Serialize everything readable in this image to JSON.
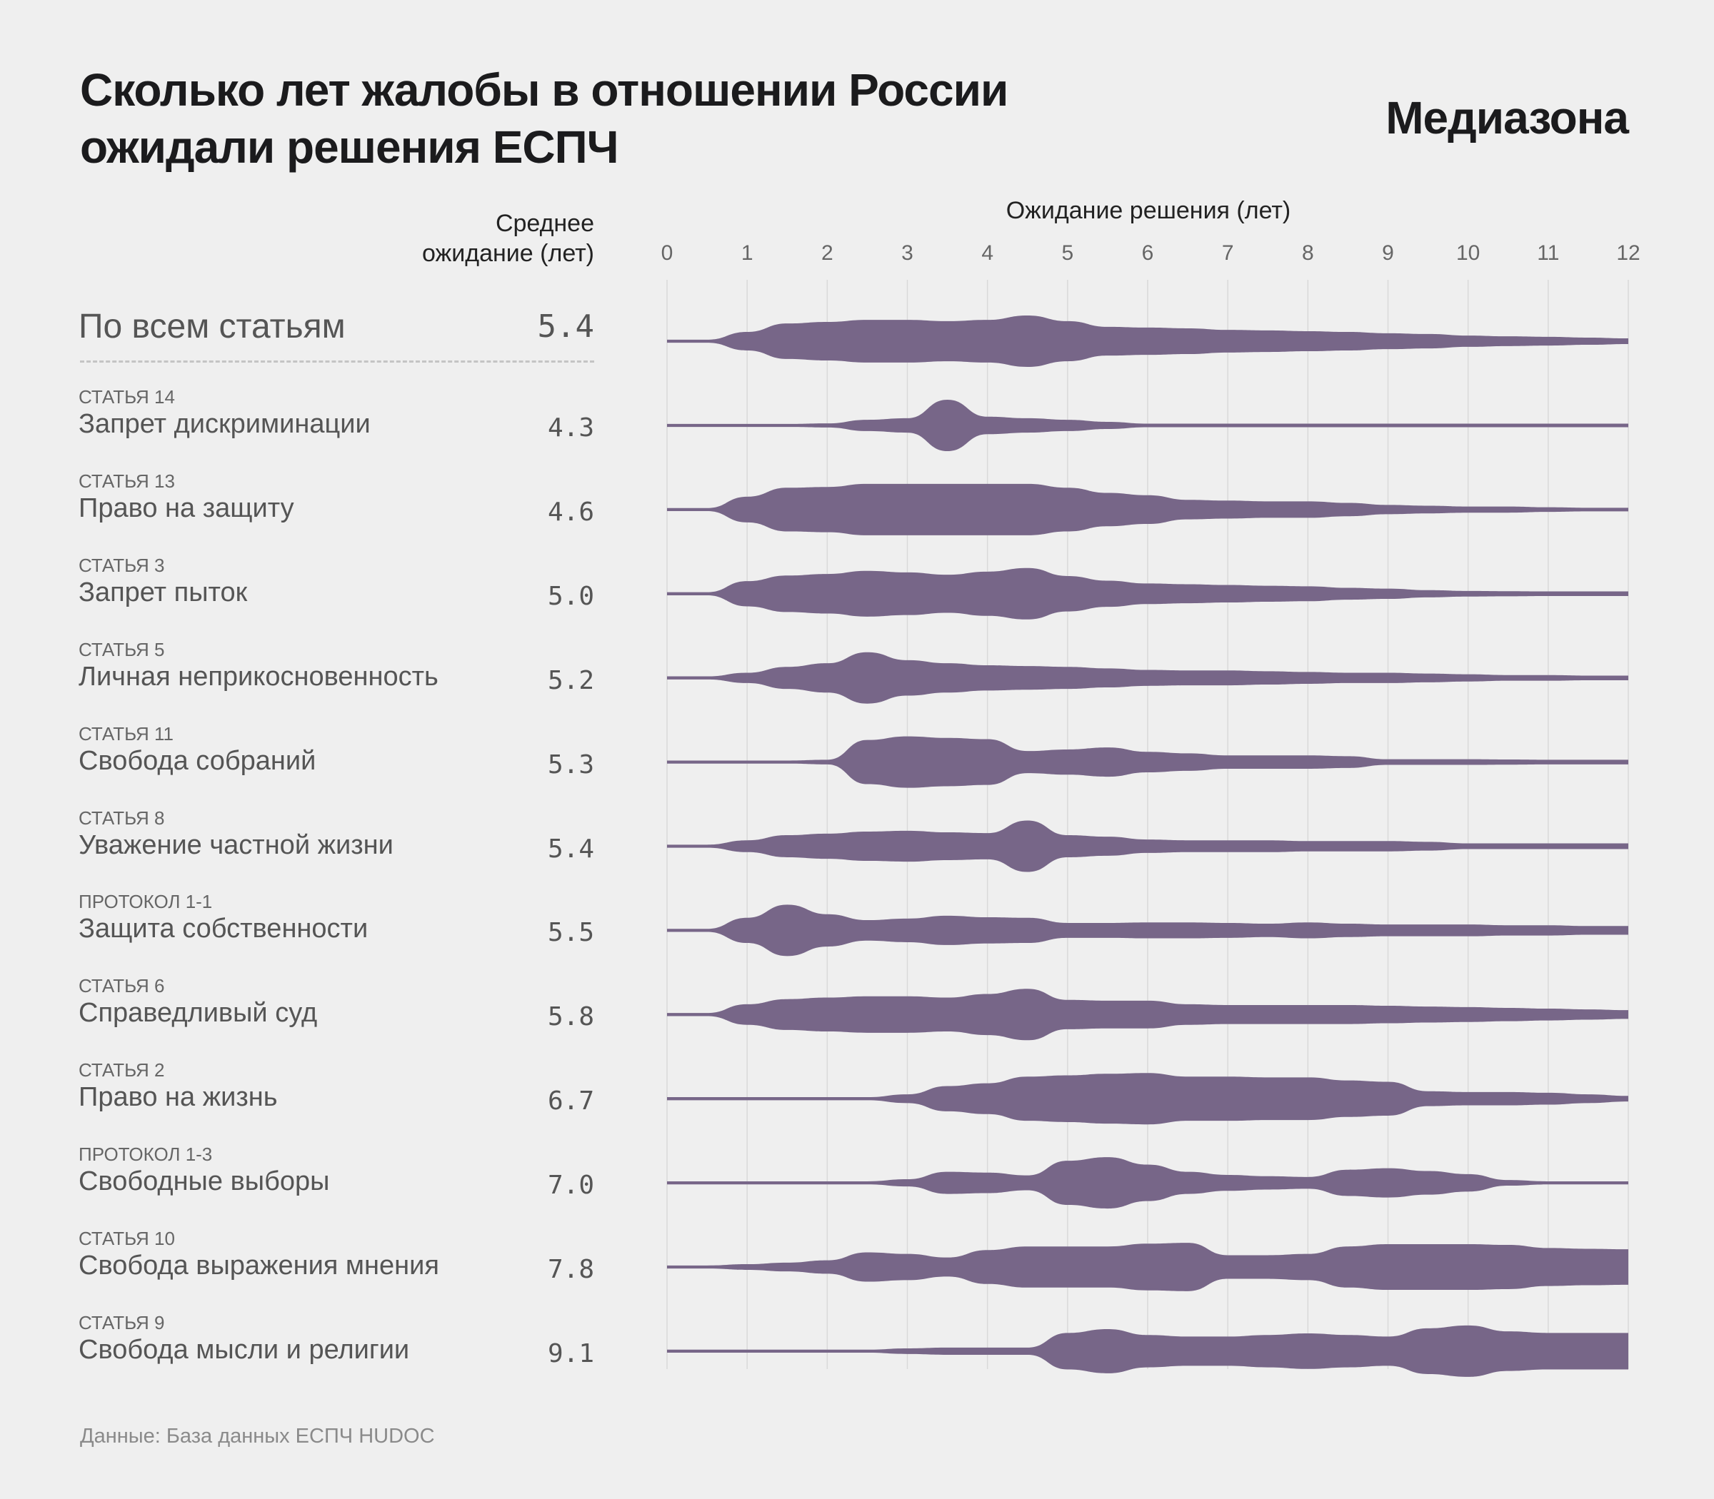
{
  "title": "Сколько лет жалобы в отношении России ожидали решения ЕСПЧ",
  "title_lines": [
    "Сколько лет жалобы в отношении России",
    "ожидали решения ЕСПЧ"
  ],
  "logo": "Медиазона",
  "mean_header": [
    "Среднее",
    "ожидание (лет)"
  ],
  "source": "Данные: База данных ЕСПЧ HUDOC",
  "colors": {
    "violin": "#776688",
    "background": "#efefef",
    "grid": "#d9d9d9"
  },
  "chart_data": {
    "type": "violin",
    "title": "Сколько лет жалобы в отношении России ожидали решения ЕСПЧ",
    "xlabel": "Ожидание решения (лет)",
    "xlim": [
      0,
      12
    ],
    "xticks": [
      "0",
      "1",
      "2",
      "3",
      "4",
      "5",
      "6",
      "7",
      "8",
      "9",
      "10",
      "11",
      "12"
    ],
    "grid": true,
    "density_x": [
      0,
      0.5,
      1,
      1.5,
      2,
      2.5,
      3,
      3.5,
      4,
      4.5,
      5,
      5.5,
      6,
      6.5,
      7,
      7.5,
      8,
      8.5,
      9,
      9.5,
      10,
      10.5,
      11,
      11.5,
      12
    ],
    "density_note": "relative density (0-1) per density_x",
    "overall": {
      "name": "По всем статьям",
      "mean": "5.4",
      "density": [
        0.06,
        0.06,
        0.36,
        0.69,
        0.75,
        0.83,
        0.83,
        0.78,
        0.83,
        1.0,
        0.78,
        0.56,
        0.53,
        0.5,
        0.44,
        0.42,
        0.39,
        0.36,
        0.31,
        0.28,
        0.22,
        0.19,
        0.17,
        0.14,
        0.11
      ]
    },
    "series": [
      {
        "category": "СТАТЬЯ 14",
        "name": "Запрет дискриминации",
        "mean": "4.3",
        "density": [
          0.06,
          0.06,
          0.06,
          0.06,
          0.08,
          0.22,
          0.28,
          1.0,
          0.34,
          0.28,
          0.22,
          0.14,
          0.07,
          0.07,
          0.07,
          0.07,
          0.07,
          0.07,
          0.07,
          0.07,
          0.07,
          0.07,
          0.07,
          0.07,
          0.07
        ]
      },
      {
        "category": "СТАТЬЯ 13",
        "name": "Право на защиту",
        "mean": "4.6",
        "density": [
          0.06,
          0.06,
          0.5,
          0.85,
          0.88,
          1.0,
          1.0,
          1.0,
          1.0,
          1.0,
          0.85,
          0.65,
          0.56,
          0.38,
          0.35,
          0.32,
          0.32,
          0.26,
          0.18,
          0.15,
          0.12,
          0.12,
          0.09,
          0.07,
          0.07
        ]
      },
      {
        "category": "СТАТЬЯ 3",
        "name": "Запрет пыток",
        "mean": "5.0",
        "density": [
          0.06,
          0.06,
          0.49,
          0.71,
          0.77,
          0.89,
          0.83,
          0.74,
          0.86,
          1.0,
          0.69,
          0.51,
          0.4,
          0.37,
          0.34,
          0.31,
          0.29,
          0.23,
          0.2,
          0.14,
          0.11,
          0.1,
          0.09,
          0.09,
          0.09
        ]
      },
      {
        "category": "СТАТЬЯ 5",
        "name": "Личная неприкосновенность",
        "mean": "5.2",
        "density": [
          0.06,
          0.06,
          0.2,
          0.43,
          0.57,
          1.0,
          0.69,
          0.57,
          0.49,
          0.46,
          0.43,
          0.37,
          0.31,
          0.29,
          0.29,
          0.26,
          0.23,
          0.2,
          0.2,
          0.17,
          0.14,
          0.11,
          0.11,
          0.09,
          0.09
        ]
      },
      {
        "category": "СТАТЬЯ 11",
        "name": "Свобода собраний",
        "mean": "5.3",
        "density": [
          0.06,
          0.06,
          0.06,
          0.06,
          0.09,
          0.86,
          1.0,
          0.94,
          0.89,
          0.43,
          0.49,
          0.57,
          0.4,
          0.34,
          0.26,
          0.26,
          0.26,
          0.23,
          0.11,
          0.11,
          0.11,
          0.1,
          0.09,
          0.09,
          0.09
        ]
      },
      {
        "category": "СТАТЬЯ 8",
        "name": "Уважение частной жизни",
        "mean": "5.4",
        "density": [
          0.06,
          0.06,
          0.23,
          0.43,
          0.49,
          0.57,
          0.6,
          0.54,
          0.51,
          1.0,
          0.43,
          0.37,
          0.26,
          0.23,
          0.23,
          0.23,
          0.2,
          0.2,
          0.2,
          0.17,
          0.11,
          0.11,
          0.11,
          0.11,
          0.11
        ]
      },
      {
        "category": "ПРОТОКОЛ 1-1",
        "name": "Защита собственности",
        "mean": "5.5",
        "density": [
          0.06,
          0.06,
          0.49,
          1.0,
          0.63,
          0.4,
          0.46,
          0.57,
          0.51,
          0.49,
          0.29,
          0.29,
          0.31,
          0.31,
          0.29,
          0.26,
          0.31,
          0.26,
          0.23,
          0.23,
          0.23,
          0.2,
          0.2,
          0.17,
          0.17
        ]
      },
      {
        "category": "СТАТЬЯ 6",
        "name": "Справедливый суд",
        "mean": "5.8",
        "density": [
          0.06,
          0.06,
          0.4,
          0.6,
          0.66,
          0.71,
          0.71,
          0.66,
          0.8,
          1.0,
          0.57,
          0.54,
          0.54,
          0.4,
          0.37,
          0.37,
          0.37,
          0.37,
          0.34,
          0.31,
          0.29,
          0.26,
          0.23,
          0.2,
          0.17
        ]
      },
      {
        "category": "СТАТЬЯ 2",
        "name": "Право на жизнь",
        "mean": "6.7",
        "density": [
          0.06,
          0.06,
          0.06,
          0.06,
          0.06,
          0.06,
          0.17,
          0.49,
          0.6,
          0.86,
          0.91,
          0.97,
          1.0,
          0.86,
          0.86,
          0.83,
          0.83,
          0.71,
          0.66,
          0.29,
          0.26,
          0.26,
          0.23,
          0.17,
          0.11
        ]
      },
      {
        "category": "ПРОТОКОЛ 1-3",
        "name": "Свободные выборы",
        "mean": "7.0",
        "density": [
          0.06,
          0.06,
          0.06,
          0.06,
          0.06,
          0.06,
          0.14,
          0.43,
          0.4,
          0.29,
          0.86,
          1.0,
          0.71,
          0.43,
          0.31,
          0.26,
          0.23,
          0.51,
          0.57,
          0.46,
          0.34,
          0.11,
          0.06,
          0.06,
          0.06
        ]
      },
      {
        "category": "СТАТЬЯ 10",
        "name": "Свобода выражения мнения",
        "mean": "7.8",
        "density": [
          0.06,
          0.06,
          0.11,
          0.17,
          0.26,
          0.57,
          0.51,
          0.37,
          0.66,
          0.8,
          0.8,
          0.8,
          0.91,
          0.94,
          0.46,
          0.46,
          0.51,
          0.8,
          0.89,
          0.89,
          0.89,
          0.86,
          0.74,
          0.71,
          0.69
        ]
      },
      {
        "category": "СТАТЬЯ 9",
        "name": "Свобода мысли и религии",
        "mean": "9.1",
        "density": [
          0.06,
          0.06,
          0.06,
          0.06,
          0.06,
          0.06,
          0.11,
          0.14,
          0.14,
          0.14,
          0.71,
          0.86,
          0.63,
          0.57,
          0.57,
          0.63,
          0.69,
          0.63,
          0.57,
          0.89,
          1.0,
          0.77,
          0.71,
          0.71,
          0.71
        ]
      }
    ]
  }
}
